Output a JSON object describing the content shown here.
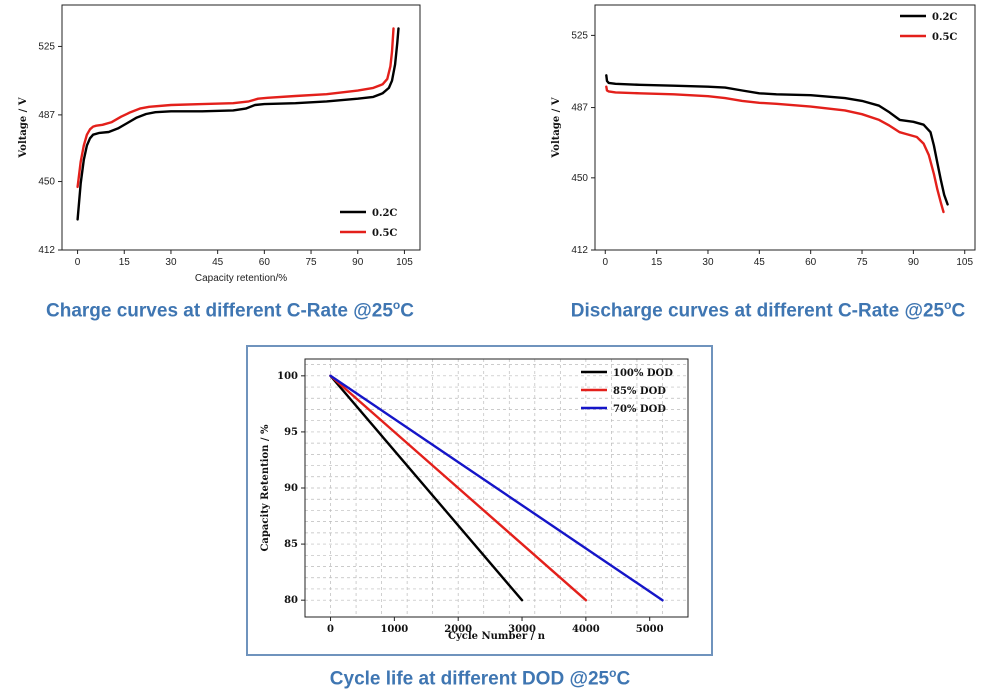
{
  "captions": {
    "charge": "Charge curves at different C-Rate @25",
    "discharge": "Discharge curves at different C-Rate @25",
    "cycle": "Cycle life at different DOD @25",
    "degree_unit": "C",
    "degree_sup": "o"
  },
  "colors": {
    "black": "#000000",
    "red": "#e3201b",
    "blue": "#1515c8",
    "caption": "#3f76b2"
  },
  "chart_data": [
    {
      "id": "charge",
      "type": "line",
      "title": "Charge curves at different C-Rate @25°C",
      "xlabel": "Capacity retention/%",
      "ylabel": "Voltage / V",
      "xlim": [
        -5,
        110
      ],
      "ylim": [
        412,
        548
      ],
      "xticks": [
        0,
        15,
        30,
        45,
        60,
        75,
        90,
        105
      ],
      "yticks": [
        412,
        450,
        487,
        525
      ],
      "legend_position": "bottom-right",
      "series": [
        {
          "name": "0.2C",
          "color": "#000000",
          "x": [
            0,
            1,
            2,
            3,
            4,
            5,
            7,
            10,
            13,
            16,
            19,
            22,
            25,
            30,
            40,
            50,
            54,
            57,
            60,
            70,
            80,
            90,
            95,
            98,
            100,
            101,
            102,
            102.7,
            103.1
          ],
          "y": [
            429,
            449,
            462,
            470,
            474,
            476,
            477,
            477.5,
            479.5,
            482.5,
            485.5,
            487.5,
            488.5,
            489,
            489,
            489.5,
            490.5,
            492.5,
            493,
            493.5,
            494.5,
            496,
            497,
            499,
            502,
            506,
            515,
            527,
            535
          ]
        },
        {
          "name": "0.5C",
          "color": "#e3201b",
          "x": [
            0,
            1,
            2,
            3,
            4,
            5,
            6,
            8,
            11,
            14,
            17,
            20,
            23,
            30,
            40,
            50,
            55,
            58,
            61,
            70,
            80,
            90,
            95,
            98,
            99.5,
            100.5,
            101,
            101.5
          ],
          "y": [
            447,
            461,
            470,
            476,
            479,
            480.5,
            481,
            481.5,
            483,
            486,
            488.5,
            490.5,
            491.5,
            492.5,
            493,
            493.5,
            494.5,
            496,
            496.5,
            497.5,
            498.5,
            500.5,
            502,
            504,
            507,
            514,
            522,
            535
          ]
        }
      ]
    },
    {
      "id": "discharge",
      "type": "line",
      "title": "Discharge curves at different C-Rate @25°C",
      "xlabel": "",
      "ylabel": "Voltage / V",
      "xlim": [
        -3,
        108
      ],
      "ylim": [
        412,
        541
      ],
      "xticks": [
        0,
        15,
        30,
        45,
        60,
        75,
        90,
        105
      ],
      "yticks": [
        412,
        450,
        487,
        525
      ],
      "legend_position": "top-right",
      "series": [
        {
          "name": "0.2C",
          "color": "#000000",
          "x": [
            0.3,
            0.5,
            1,
            3,
            10,
            20,
            30,
            35,
            40,
            45,
            50,
            60,
            70,
            75,
            80,
            83,
            86,
            90,
            93,
            95,
            96,
            97,
            98,
            99,
            100
          ],
          "y": [
            504,
            501,
            500,
            499.5,
            499,
            498.5,
            498,
            497.5,
            496,
            494.5,
            494,
            493.5,
            492,
            490.5,
            488,
            484.5,
            480.5,
            479.5,
            478,
            474,
            467,
            458,
            449,
            441,
            436
          ]
        },
        {
          "name": "0.5C",
          "color": "#e3201b",
          "x": [
            0.3,
            0.5,
            1,
            3,
            10,
            20,
            30,
            35,
            40,
            45,
            50,
            60,
            70,
            75,
            80,
            83,
            86,
            88,
            91,
            93,
            94.5,
            96,
            97,
            98,
            98.8
          ],
          "y": [
            498,
            496,
            495.5,
            495,
            494.5,
            494,
            493,
            492,
            490.5,
            489.5,
            489,
            487.5,
            485.5,
            483.5,
            480.5,
            477.5,
            474,
            473,
            471.5,
            468,
            462,
            452,
            444,
            437,
            432
          ]
        }
      ]
    },
    {
      "id": "cycle",
      "type": "line",
      "title": "Cycle life at different DOD @25°C",
      "xlabel": "Cycle Number / n",
      "ylabel": "Capacity Retention / %",
      "xlim": [
        -400,
        5600
      ],
      "ylim": [
        78.5,
        101.5
      ],
      "xticks": [
        0,
        1000,
        2000,
        3000,
        4000,
        5000
      ],
      "yticks": [
        80,
        85,
        90,
        95,
        100
      ],
      "legend_position": "top-right",
      "series": [
        {
          "name": "100% DOD",
          "color": "#000000",
          "x": [
            0,
            3000
          ],
          "y": [
            100,
            80
          ]
        },
        {
          "name": "85% DOD",
          "color": "#e3201b",
          "x": [
            0,
            4000
          ],
          "y": [
            100,
            80
          ]
        },
        {
          "name": "70% DOD",
          "color": "#1515c8",
          "x": [
            0,
            5200
          ],
          "y": [
            100,
            80
          ]
        }
      ]
    }
  ]
}
